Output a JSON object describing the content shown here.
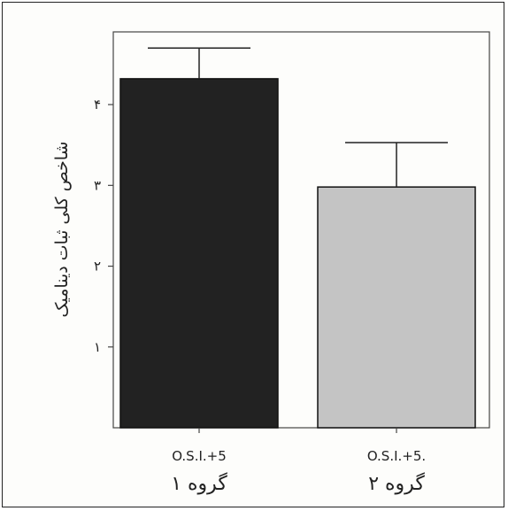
{
  "chart_data": {
    "type": "bar",
    "title": "",
    "xlabel": "",
    "ylabel": "شاخص کلی ثبات دینامیک",
    "ylim": [
      0,
      4.9
    ],
    "yticks": [
      1,
      2,
      3,
      4
    ],
    "ytick_labels": [
      "١",
      "٢",
      "٣",
      "۴"
    ],
    "categories": [
      "O.S.I.+5",
      "O.S.I.+5."
    ],
    "group_labels": [
      "گروه ۱",
      "گروه ۲"
    ],
    "values": [
      4.32,
      2.98
    ],
    "error_upper": [
      4.7,
      3.53
    ],
    "bar_colors": [
      "#222222",
      "#c4c4c4"
    ],
    "grid": false,
    "legend": "none"
  }
}
